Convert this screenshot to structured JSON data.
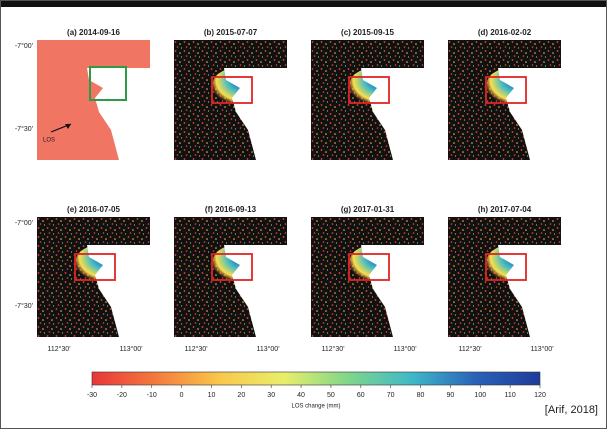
{
  "panels": [
    {
      "title": "(a) 2014-09-16"
    },
    {
      "title": "(b) 2015-07-07"
    },
    {
      "title": "(c) 2015-09-15"
    },
    {
      "title": "(d) 2016-02-02"
    },
    {
      "title": "(e) 2016-07-05"
    },
    {
      "title": "(f) 2016-09-13"
    },
    {
      "title": "(g) 2017-01-31"
    },
    {
      "title": "(h) 2017-07-04"
    }
  ],
  "lat_labels": [
    "-7°00'",
    "-7°30'"
  ],
  "lon_labels": [
    "112°30'",
    "113°00'"
  ],
  "annotation": "LOS",
  "colorbar": {
    "ticks": [
      -30,
      -20,
      -10,
      0,
      10,
      20,
      30,
      40,
      50,
      60,
      70,
      80,
      90,
      100,
      110,
      120
    ],
    "label": "LOS change (mm)",
    "colors": [
      "#e8363a",
      "#f47a3c",
      "#f9c84a",
      "#e9ee6a",
      "#7fd68a",
      "#3fb8c8",
      "#2a62b8",
      "#1e3c9a"
    ]
  },
  "citation": "[Arif, 2018]"
}
